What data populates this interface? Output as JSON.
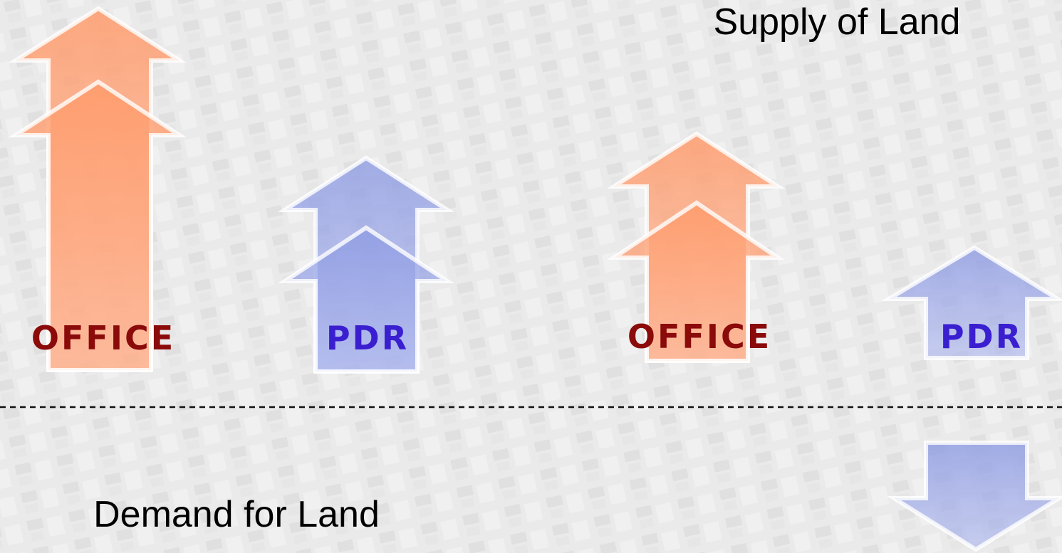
{
  "labels": {
    "supply": "Supply of Land",
    "demand": "Demand for Land"
  },
  "arrows": [
    {
      "label": "OFFICE"
    },
    {
      "label": "PDR"
    },
    {
      "label": "OFFICE"
    },
    {
      "label": "PDR"
    }
  ]
}
